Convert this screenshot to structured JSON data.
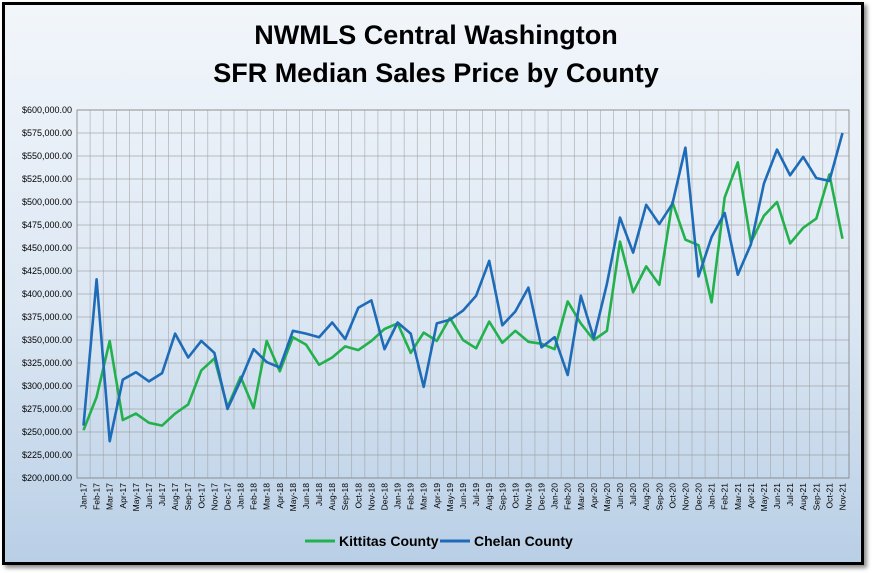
{
  "chart_data": {
    "type": "line",
    "title_line1": "NWMLS Central Washington",
    "title_line2": "SFR Median Sales Price by County",
    "xlabel": "",
    "ylabel": "",
    "ylim": [
      200000,
      600000
    ],
    "ytick_values": [
      200000,
      225000,
      250000,
      275000,
      300000,
      325000,
      350000,
      375000,
      400000,
      425000,
      450000,
      475000,
      500000,
      525000,
      550000,
      575000,
      600000
    ],
    "ytick_labels": [
      "$200,000.00",
      "$225,000.00",
      "$250,000.00",
      "$275,000.00",
      "$300,000.00",
      "$325,000.00",
      "$350,000.00",
      "$375,000.00",
      "$400,000.00",
      "$425,000.00",
      "$450,000.00",
      "$475,000.00",
      "$500,000.00",
      "$525,000.00",
      "$550,000.00",
      "$575,000.00",
      "$600,000.00"
    ],
    "grid": true,
    "legend_position": "bottom",
    "categories": [
      "Jan-17",
      "Feb-17",
      "Mar-17",
      "Apr-17",
      "May-17",
      "Jun-17",
      "Jul-17",
      "Aug-17",
      "Sep-17",
      "Oct-17",
      "Nov-17",
      "Dec-17",
      "Jan-18",
      "Feb-18",
      "Mar-18",
      "Apr-18",
      "May-18",
      "Jun-18",
      "Jul-18",
      "Aug-18",
      "Sep-18",
      "Oct-18",
      "Nov-18",
      "Dec-18",
      "Jan-19",
      "Feb-19",
      "Mar-19",
      "Apr-19",
      "May-19",
      "Jun-19",
      "Jul-19",
      "Aug-19",
      "Sep-19",
      "Oct-19",
      "Nov-19",
      "Dec-19",
      "Jan-20",
      "Feb-20",
      "Mar-20",
      "Apr-20",
      "May-20",
      "Jun-20",
      "Jul-20",
      "Aug-20",
      "Sep-20",
      "Oct-20",
      "Nov-20",
      "Dec-20",
      "Jan-21",
      "Feb-21",
      "Mar-21",
      "Apr-21",
      "May-21",
      "Jun-21",
      "Jul-21",
      "Aug-21",
      "Sep-21",
      "Oct-21",
      "Nov-21"
    ],
    "series": [
      {
        "name": "Kittitas County",
        "color": "#22b14c",
        "values": [
          252000,
          288000,
          349000,
          263000,
          270000,
          260000,
          257000,
          270000,
          280000,
          317000,
          330000,
          277000,
          310000,
          276000,
          349000,
          316000,
          353000,
          345000,
          323000,
          331000,
          343000,
          339000,
          349000,
          362000,
          368000,
          336000,
          358000,
          349000,
          374000,
          350000,
          341000,
          370000,
          347000,
          360000,
          348000,
          346000,
          340000,
          392000,
          368000,
          350000,
          360000,
          457000,
          402000,
          430000,
          410000,
          500000,
          459000,
          453000,
          391000,
          505000,
          543000,
          456000,
          485000,
          500000,
          455000,
          472000,
          482000,
          530000,
          460000
        ]
      },
      {
        "name": "Chelan County",
        "color": "#1e6bb8",
        "values": [
          257000,
          416000,
          240000,
          307000,
          315000,
          305000,
          314000,
          357000,
          331000,
          349000,
          336000,
          275000,
          306000,
          340000,
          326000,
          320000,
          360000,
          357000,
          353000,
          369000,
          351000,
          385000,
          393000,
          340000,
          369000,
          357000,
          299000,
          368000,
          372000,
          382000,
          398000,
          436000,
          366000,
          381000,
          407000,
          342000,
          353000,
          312000,
          398000,
          352000,
          411000,
          483000,
          445000,
          497000,
          476000,
          498000,
          559000,
          419000,
          462000,
          488000,
          421000,
          454000,
          520000,
          557000,
          529000,
          549000,
          526000,
          523000,
          575000
        ]
      }
    ]
  }
}
